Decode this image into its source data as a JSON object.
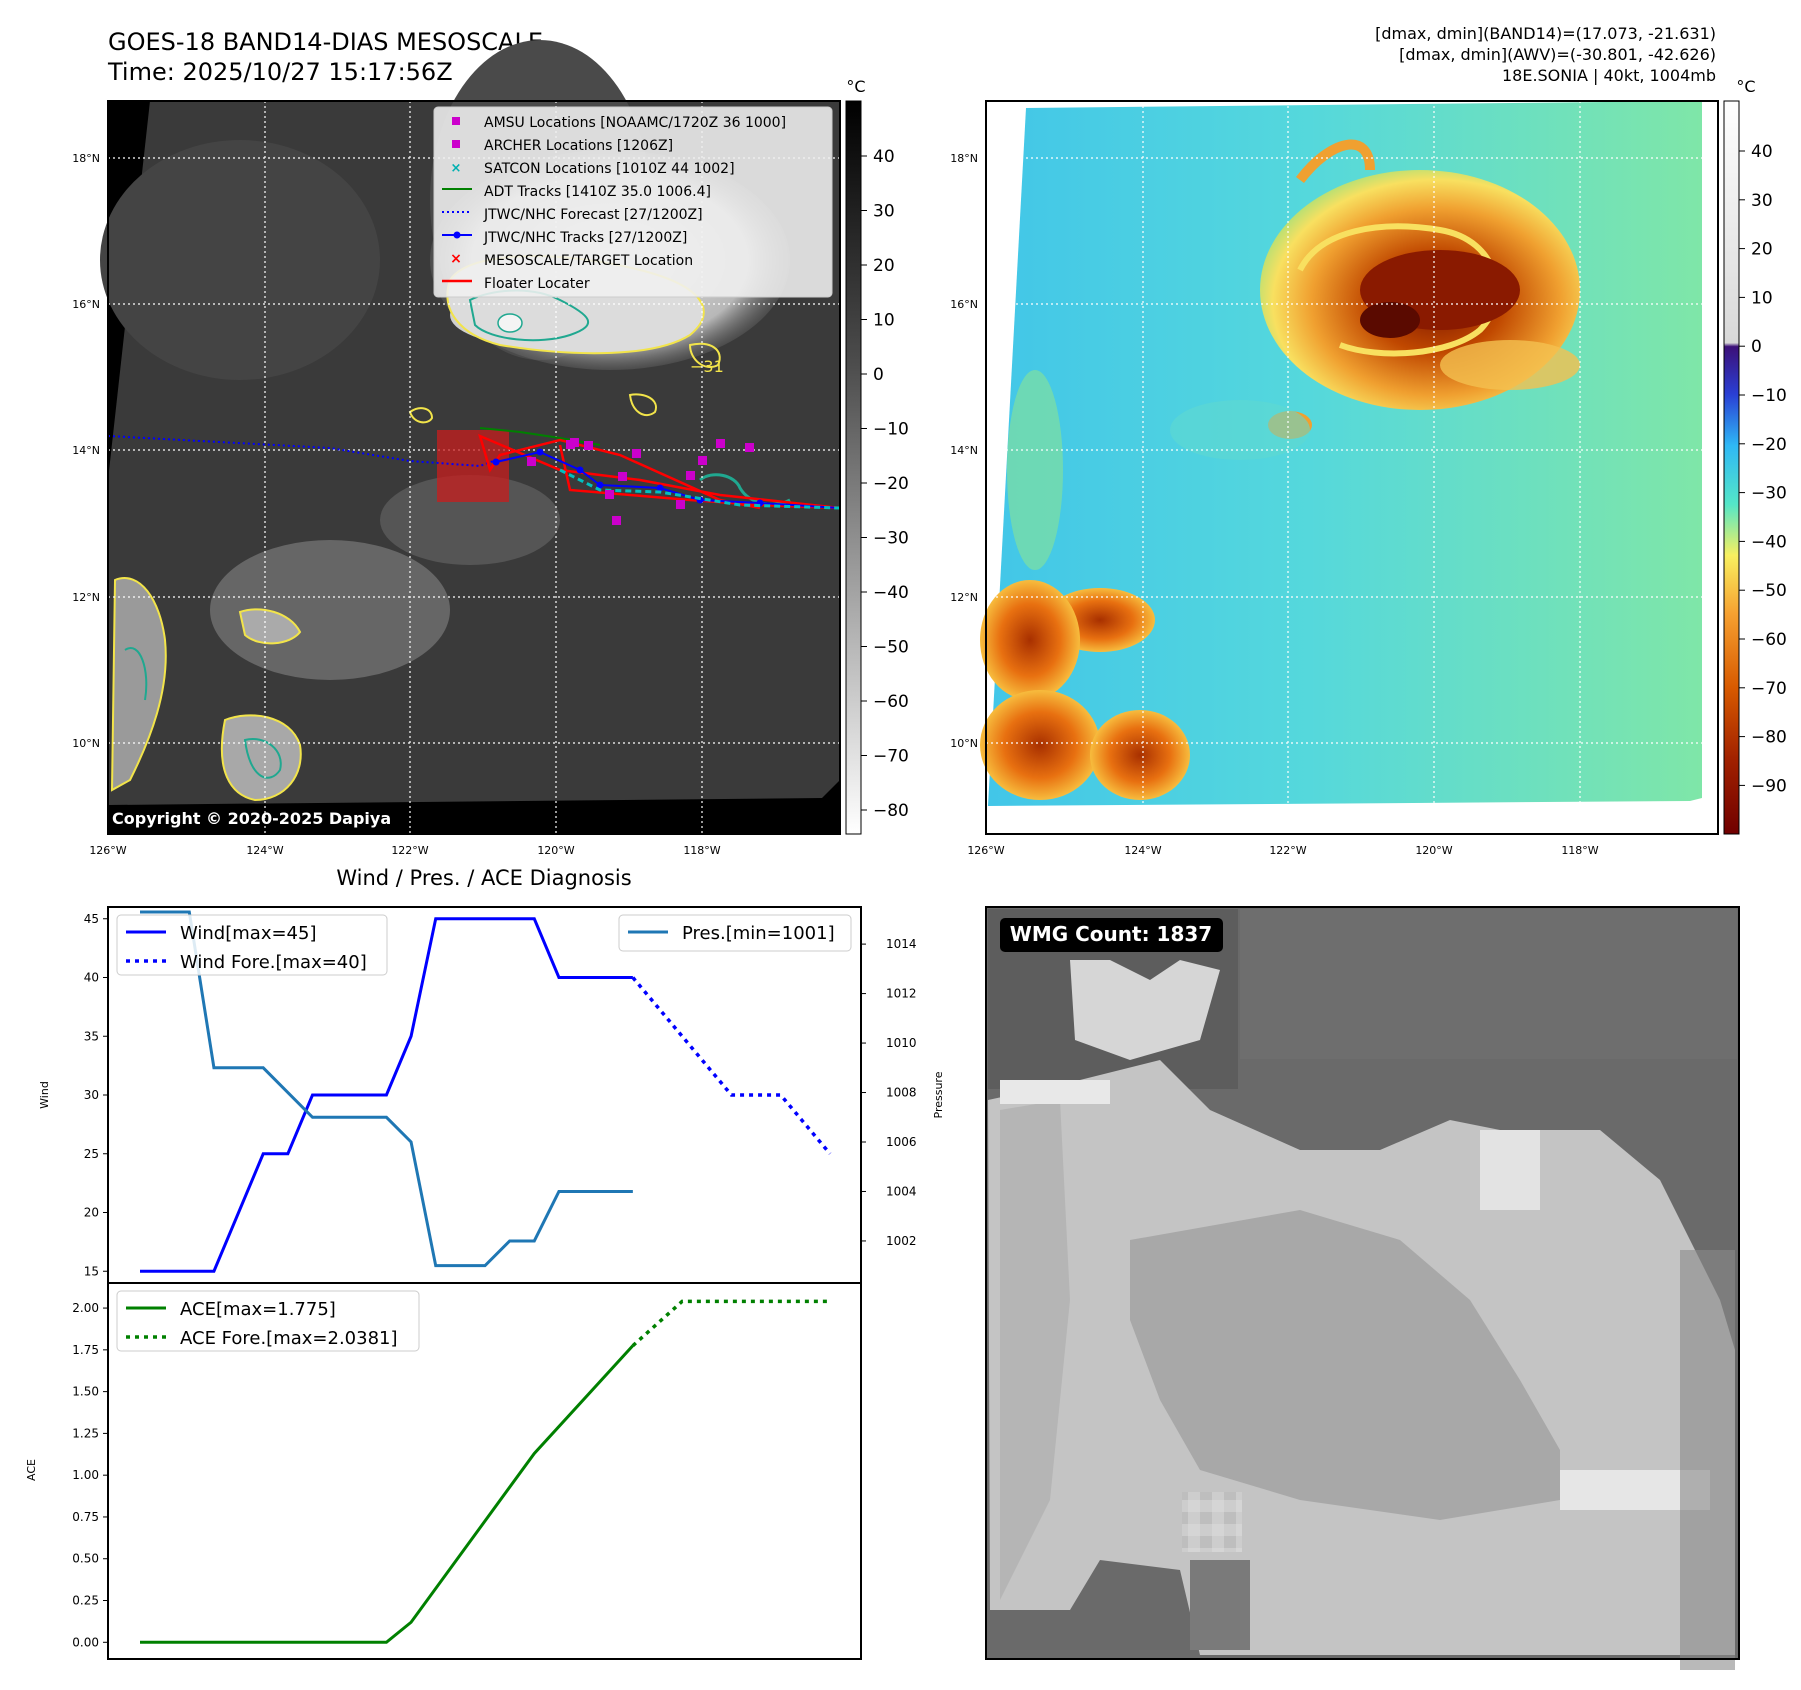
{
  "header": {
    "title_line1": "GOES-18 BAND14-DIAS MESOSCALE",
    "title_line2": "Time: 2025/10/27 15:17:56Z",
    "info_line1": "[dmax, dmin](BAND14)=(17.073, -21.631)",
    "info_line2": "[dmax, dmin](AWV)=(-30.801, -42.626)",
    "info_line3": "18E.SONIA | 40kt, 1004mb"
  },
  "colors": {
    "wind": "#0000ff",
    "pressure": "#1f77b4",
    "ace": "#008000",
    "floater": "#ff0000",
    "archer": "#cc00cc",
    "satcon": "#00c0c0"
  },
  "map_axes": {
    "lon_labels": [
      "126°W",
      "124°W",
      "122°W",
      "120°W",
      "118°W"
    ],
    "lat_labels": [
      "18°N",
      "16°N",
      "14°N",
      "12°N",
      "10°N"
    ],
    "contour_label": "−31",
    "copyright": "Copyright © 2020-2025 Dapiya"
  },
  "gray_colorbar": {
    "unit": "°C",
    "ticks": [
      "40",
      "30",
      "20",
      "10",
      "0",
      "−10",
      "−20",
      "−30",
      "−40",
      "−50",
      "−60",
      "−70",
      "−80"
    ]
  },
  "color_colorbar": {
    "unit": "°C",
    "ticks": [
      "40",
      "30",
      "20",
      "10",
      "0",
      "−10",
      "−20",
      "−30",
      "−40",
      "−50",
      "−60",
      "−70",
      "−80",
      "−90"
    ]
  },
  "legend": {
    "items": [
      "AMSU Locations [NOAAMC/1720Z 36 1000]",
      "ARCHER Locations [1206Z]",
      "SATCON Locations [1010Z 44 1002]",
      "ADT Tracks [1410Z 35.0 1006.4]",
      "JTWC/NHC Forecast [27/1200Z]",
      "JTWC/NHC Tracks [27/1200Z]",
      "MESOSCALE/TARGET Location",
      "Floater Locater"
    ]
  },
  "wmg": {
    "label": "WMG Count: 1837"
  },
  "chart_data": [
    {
      "type": "line",
      "title": "Wind / Pres. / ACE Diagnosis",
      "ylabel": "Wind",
      "y2label": "Pressure",
      "ylim": [
        14,
        46
      ],
      "y2lim": [
        1000.3,
        1015.5
      ],
      "yticks": [
        15,
        20,
        25,
        30,
        35,
        40,
        45
      ],
      "y2ticks": [
        1002,
        1004,
        1006,
        1008,
        1010,
        1012,
        1014
      ],
      "legend_left": [
        "Wind[max=45]",
        "Wind Fore.[max=40]"
      ],
      "legend_right": [
        "Pres.[min=1001]"
      ],
      "series": [
        {
          "name": "Wind[max=45]",
          "axis": "left",
          "x": [
            0,
            3,
            5,
            6,
            7,
            10,
            11,
            12,
            16,
            17,
            20
          ],
          "values": [
            15,
            15,
            25,
            25,
            30,
            30,
            35,
            45,
            45,
            40,
            40
          ]
        },
        {
          "name": "Wind Fore.[max=40]",
          "axis": "left",
          "dashed": true,
          "x": [
            20,
            24,
            25,
            26,
            28
          ],
          "values": [
            40,
            30,
            30,
            30,
            25
          ]
        },
        {
          "name": "Pres.[min=1001]",
          "axis": "right",
          "x": [
            0,
            2,
            3,
            5,
            7,
            10,
            11,
            12,
            14,
            15,
            16,
            17,
            20
          ],
          "values": [
            1015.3,
            1015.3,
            1009,
            1009,
            1007,
            1007,
            1006,
            1001,
            1001,
            1002,
            1002,
            1004,
            1004
          ]
        }
      ]
    },
    {
      "type": "line",
      "ylabel": "ACE",
      "ylim": [
        -0.1,
        2.15
      ],
      "yticks": [
        "0.00",
        "0.25",
        "0.50",
        "0.75",
        "1.00",
        "1.25",
        "1.50",
        "1.75",
        "2.00"
      ],
      "legend": [
        "ACE[max=1.775]",
        "ACE Fore.[max=2.0381]"
      ],
      "series": [
        {
          "name": "ACE[max=1.775]",
          "x": [
            0,
            10,
            11,
            16,
            20
          ],
          "values": [
            0,
            0,
            0.12,
            1.13,
            1.775
          ]
        },
        {
          "name": "ACE Fore.[max=2.0381]",
          "dashed": true,
          "x": [
            20,
            22,
            28
          ],
          "values": [
            1.775,
            2.04,
            2.04
          ]
        }
      ]
    }
  ]
}
